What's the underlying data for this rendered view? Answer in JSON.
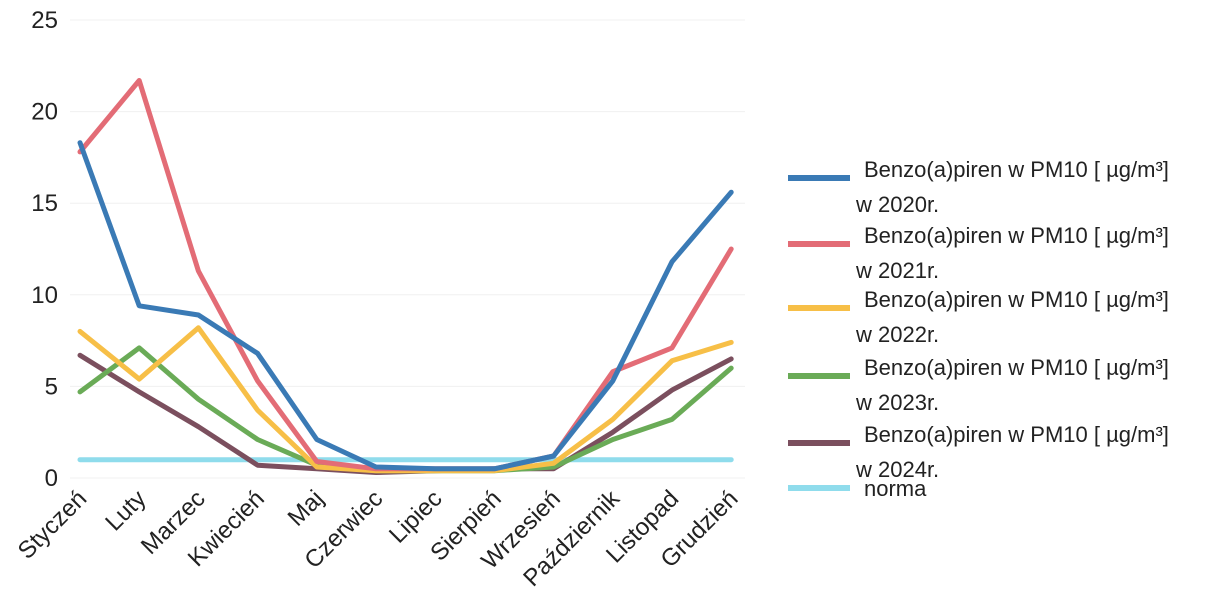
{
  "chart_data": {
    "type": "line",
    "categories": [
      "Styczeń",
      "Luty",
      "Marzec",
      "Kwiecień",
      "Maj",
      "Czerwiec",
      "Lipiec",
      "Sierpień",
      "Wrzesień",
      "Październik",
      "Listopad",
      "Grudzień"
    ],
    "series": [
      {
        "name_line1": "Benzo(a)piren w PM10 [ µg/m³]",
        "name_line2": "w 2020r.",
        "color": "#3a7ab5",
        "values": [
          18.3,
          9.4,
          8.9,
          6.8,
          2.1,
          0.6,
          0.5,
          0.5,
          1.2,
          5.3,
          11.8,
          15.6
        ]
      },
      {
        "name_line1": "Benzo(a)piren w PM10 [ µg/m³]",
        "name_line2": "w 2021r.",
        "color": "#e36c76",
        "values": [
          17.8,
          21.7,
          11.3,
          5.3,
          0.9,
          0.5,
          0.5,
          0.5,
          1.2,
          5.8,
          7.1,
          12.5
        ]
      },
      {
        "name_line1": "Benzo(a)piren w PM10 [ µg/m³]",
        "name_line2": "w 2022r.",
        "color": "#f7bf47",
        "values": [
          8.0,
          5.4,
          8.2,
          3.7,
          0.6,
          0.4,
          0.4,
          0.4,
          0.8,
          3.2,
          6.4,
          7.4
        ]
      },
      {
        "name_line1": "Benzo(a)piren w PM10 [ µg/m³]",
        "name_line2": "w 2023r.",
        "color": "#6aab57",
        "values": [
          4.7,
          7.1,
          4.3,
          2.1,
          0.7,
          0.4,
          0.4,
          0.4,
          0.6,
          2.1,
          3.2,
          6.0
        ]
      },
      {
        "name_line1": "Benzo(a)piren w PM10 [ µg/m³]",
        "name_line2": "w 2024r.",
        "color": "#7b4f5e",
        "values": [
          6.7,
          4.7,
          2.8,
          0.7,
          0.5,
          0.3,
          0.4,
          0.5,
          0.5,
          2.5,
          4.8,
          6.5
        ]
      },
      {
        "name_line1": "norma",
        "name_line2": "",
        "color": "#8fdcec",
        "values": [
          1,
          1,
          1,
          1,
          1,
          1,
          1,
          1,
          1,
          1,
          1,
          1
        ]
      }
    ],
    "yticks": [
      "0",
      "5",
      "10",
      "15",
      "20",
      "25"
    ],
    "ylim": [
      0,
      25
    ],
    "grid": true,
    "legend_position": "right"
  }
}
